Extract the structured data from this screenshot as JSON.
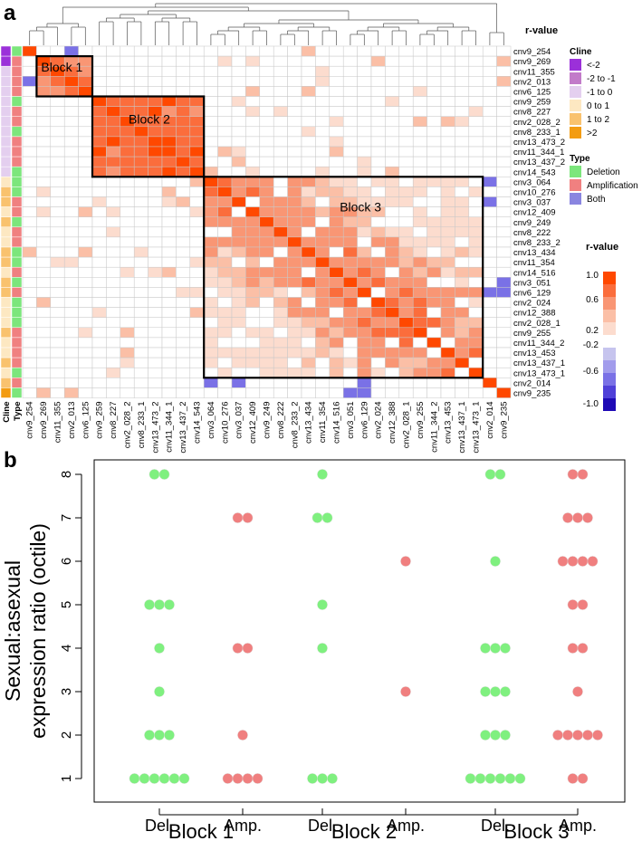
{
  "panels": {
    "a": "a",
    "b": "b"
  },
  "chart_data": [
    {
      "type": "heatmap",
      "title": "",
      "labels": [
        "cnv9_254",
        "cnv9_269",
        "cnv11_355",
        "cnv2_013",
        "cnv6_125",
        "cnv9_259",
        "cnv8_227",
        "cnv2_028_2",
        "cnv8_233_1",
        "cnv13_473_2",
        "cnv11_344_1",
        "cnv13_437_2",
        "cnv14_543",
        "cnv3_064",
        "cnv10_276",
        "cnv3_037",
        "cnv12_409",
        "cnv9_249",
        "cnv8_222",
        "cnv8_233_2",
        "cnv13_434",
        "cnv11_354",
        "cnv14_516",
        "cnv3_051",
        "cnv6_129",
        "cnv2_024",
        "cnv12_388",
        "cnv2_028_1",
        "cnv9_255",
        "cnv11_344_2",
        "cnv13_453",
        "cnv13_437_1",
        "cnv13_473_1",
        "cnv2_014",
        "cnv9_235"
      ],
      "blocks": [
        {
          "name": "Block 1",
          "start": 1,
          "end": 4
        },
        {
          "name": "Block 2",
          "start": 5,
          "end": 12
        },
        {
          "name": "Block 3",
          "start": 13,
          "end": 32
        }
      ],
      "row_annotation_labels": [
        "Cline",
        "Type"
      ],
      "cline_per_row": [
        "<-2",
        "<-2",
        "-1 to 0",
        "-1 to 0",
        "-1 to 0",
        "-1 to 0",
        "-1 to 0",
        "-1 to 0",
        "-1 to 0",
        "-1 to 0",
        "-1 to 0",
        "-1 to 0",
        "-1 to 0",
        "0 to 1",
        "1 to 2",
        "1 to 2",
        "0 to 1",
        "1 to 2",
        "0 to 1",
        "0 to 1",
        "1 to 2",
        "1 to 2",
        "0 to 1",
        "1 to 2",
        "1 to 2",
        "0 to 1",
        "0 to 1",
        "0 to 1",
        "1 to 2",
        "0 to 1",
        "0 to 1",
        "1 to 2",
        "0 to 1",
        "1 to 2",
        ">2"
      ],
      "type_per_row": [
        "Deletion",
        "Amplification",
        "Amplification",
        "Amplification",
        "Amplification",
        "Deletion",
        "Amplification",
        "Amplification",
        "Deletion",
        "Amplification",
        "Amplification",
        "Amplification",
        "Deletion",
        "Deletion",
        "Deletion",
        "Amplification",
        "Amplification",
        "Deletion",
        "Amplification",
        "Amplification",
        "Deletion",
        "Deletion",
        "Amplification",
        "Deletion",
        "Amplification",
        "Deletion",
        "Deletion",
        "Deletion",
        "Amplification",
        "Amplification",
        "Amplification",
        "Amplification",
        "Deletion",
        "Amplification",
        "Deletion"
      ],
      "cline_legend": {
        "title": "Cline",
        "items": [
          {
            "label": "<-2",
            "color": "#9b30d9"
          },
          {
            "label": "-2 to -1",
            "color": "#c27bc9"
          },
          {
            "label": "-1 to 0",
            "color": "#e4cfef"
          },
          {
            "label": "0 to 1",
            "color": "#fde8c2"
          },
          {
            "label": "1 to 2",
            "color": "#f9c26e"
          },
          {
            "label": ">2",
            "color": "#f39c12"
          }
        ]
      },
      "type_legend": {
        "title": "Type",
        "items": [
          {
            "label": "Deletion",
            "color": "#7ce67c"
          },
          {
            "label": "Amplification",
            "color": "#f08080"
          },
          {
            "label": "Both",
            "color": "#8a85e0"
          }
        ]
      },
      "r_value_legend": {
        "title": "r-value",
        "top_title": "r-value",
        "ticks": [
          "1.0",
          "0.6",
          "0.2",
          "-0.2",
          "-0.6",
          "-1.0"
        ],
        "positive_colors": [
          "#ff4800",
          "#fb6d3c",
          "#f99674",
          "#fbbfa6",
          "#fcdcce"
        ],
        "negative_colors": [
          "#c6c4ee",
          "#a29cec",
          "#7a71e6",
          "#4f40d8",
          "#1e0ab5"
        ]
      }
    },
    {
      "type": "scatter",
      "ylabel": "Sexual:asexual expression ratio (octile)",
      "ylabel_lines": [
        "Sexual:asexual",
        "expression ratio (octile)"
      ],
      "yticks": [
        1,
        2,
        3,
        4,
        5,
        6,
        7,
        8
      ],
      "ylim": [
        0.5,
        8.5
      ],
      "groups": [
        "Block 1",
        "Block 2",
        "Block 3"
      ],
      "sub_categories": [
        "Del.",
        "Amp."
      ],
      "colors": {
        "Del.": "#7ff07f",
        "Amp.": "#f07f7f"
      },
      "series": [
        {
          "group": "Block 1",
          "type": "Del.",
          "counts": {
            "1": 6,
            "2": 3,
            "3": 1,
            "4": 1,
            "5": 3,
            "6": 0,
            "7": 0,
            "8": 2
          }
        },
        {
          "group": "Block 1",
          "type": "Amp.",
          "counts": {
            "1": 4,
            "2": 1,
            "3": 0,
            "4": 2,
            "5": 0,
            "6": 0,
            "7": 2,
            "8": 0
          }
        },
        {
          "group": "Block 2",
          "type": "Del.",
          "counts": {
            "1": 3,
            "2": 0,
            "3": 0,
            "4": 1,
            "5": 1,
            "6": 0,
            "7": 2,
            "8": 1
          }
        },
        {
          "group": "Block 2",
          "type": "Amp.",
          "counts": {
            "1": 0,
            "2": 0,
            "3": 1,
            "4": 0,
            "5": 0,
            "6": 1,
            "7": 0,
            "8": 0
          }
        },
        {
          "group": "Block 3",
          "type": "Del.",
          "counts": {
            "1": 6,
            "2": 3,
            "3": 3,
            "4": 3,
            "5": 0,
            "6": 1,
            "7": 0,
            "8": 2
          }
        },
        {
          "group": "Block 3",
          "type": "Amp.",
          "counts": {
            "1": 2,
            "2": 5,
            "3": 1,
            "4": 2,
            "5": 2,
            "6": 4,
            "7": 3,
            "8": 2
          }
        }
      ]
    }
  ]
}
